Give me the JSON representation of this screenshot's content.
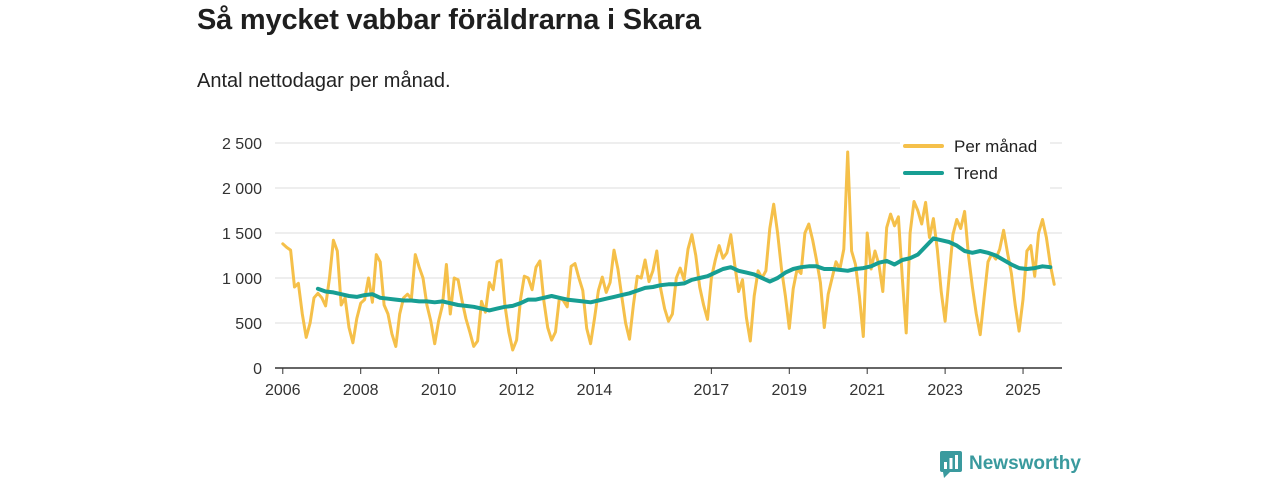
{
  "header": {
    "title": "Så mycket vabbar föräldrarna i Skara",
    "subtitle": "Antal nettodagar per månad."
  },
  "brand": {
    "name": "Newsworthy",
    "color": "#3a9a9e"
  },
  "colors": {
    "per_month": "#f5c04a",
    "trend": "#179e93",
    "grid": "#dcdcdc",
    "axis": "#333333"
  },
  "chart_data": {
    "type": "line",
    "title": "Så mycket vabbar föräldrarna i Skara",
    "subtitle": "Antal nettodagar per månad.",
    "xlabel": "",
    "ylabel": "",
    "xlim": [
      2005.8,
      2026.0
    ],
    "ylim": [
      0,
      2500
    ],
    "y_ticks": [
      0,
      500,
      1000,
      1500,
      2000,
      2500
    ],
    "y_tick_labels": [
      "0",
      "500",
      "1 000",
      "1 500",
      "2 000",
      "2 500"
    ],
    "x_ticks": [
      2006,
      2008,
      2010,
      2012,
      2014,
      2017,
      2019,
      2021,
      2023,
      2025
    ],
    "x_tick_labels": [
      "2006",
      "2008",
      "2010",
      "2012",
      "2014",
      "2017",
      "2019",
      "2021",
      "2023",
      "2025"
    ],
    "grid": true,
    "legend_position": "top-right",
    "series": [
      {
        "name": "Per månad",
        "color": "#f5c04a",
        "points": [
          [
            2006.0,
            1380
          ],
          [
            2006.1,
            1340
          ],
          [
            2006.2,
            1310
          ],
          [
            2006.3,
            900
          ],
          [
            2006.4,
            940
          ],
          [
            2006.5,
            600
          ],
          [
            2006.6,
            340
          ],
          [
            2006.7,
            500
          ],
          [
            2006.8,
            780
          ],
          [
            2006.9,
            830
          ],
          [
            2007.0,
            780
          ],
          [
            2007.1,
            690
          ],
          [
            2007.2,
            1000
          ],
          [
            2007.3,
            1420
          ],
          [
            2007.4,
            1300
          ],
          [
            2007.5,
            700
          ],
          [
            2007.6,
            780
          ],
          [
            2007.7,
            450
          ],
          [
            2007.8,
            280
          ],
          [
            2007.9,
            550
          ],
          [
            2008.0,
            720
          ],
          [
            2008.1,
            760
          ],
          [
            2008.2,
            1000
          ],
          [
            2008.3,
            730
          ],
          [
            2008.4,
            1260
          ],
          [
            2008.5,
            1180
          ],
          [
            2008.6,
            700
          ],
          [
            2008.7,
            600
          ],
          [
            2008.8,
            380
          ],
          [
            2008.9,
            240
          ],
          [
            2009.0,
            600
          ],
          [
            2009.1,
            780
          ],
          [
            2009.2,
            820
          ],
          [
            2009.3,
            770
          ],
          [
            2009.4,
            1260
          ],
          [
            2009.5,
            1120
          ],
          [
            2009.6,
            1000
          ],
          [
            2009.7,
            700
          ],
          [
            2009.8,
            520
          ],
          [
            2009.9,
            270
          ],
          [
            2010.0,
            520
          ],
          [
            2010.1,
            700
          ],
          [
            2010.2,
            1150
          ],
          [
            2010.3,
            600
          ],
          [
            2010.4,
            1000
          ],
          [
            2010.5,
            980
          ],
          [
            2010.6,
            750
          ],
          [
            2010.7,
            550
          ],
          [
            2010.8,
            400
          ],
          [
            2010.9,
            240
          ],
          [
            2011.0,
            300
          ],
          [
            2011.1,
            740
          ],
          [
            2011.2,
            620
          ],
          [
            2011.3,
            950
          ],
          [
            2011.4,
            870
          ],
          [
            2011.5,
            1180
          ],
          [
            2011.6,
            1200
          ],
          [
            2011.7,
            700
          ],
          [
            2011.8,
            400
          ],
          [
            2011.9,
            200
          ],
          [
            2012.0,
            310
          ],
          [
            2012.1,
            760
          ],
          [
            2012.2,
            1020
          ],
          [
            2012.3,
            1000
          ],
          [
            2012.4,
            870
          ],
          [
            2012.5,
            1120
          ],
          [
            2012.6,
            1190
          ],
          [
            2012.7,
            750
          ],
          [
            2012.8,
            450
          ],
          [
            2012.9,
            310
          ],
          [
            2013.0,
            400
          ],
          [
            2013.1,
            780
          ],
          [
            2013.2,
            750
          ],
          [
            2013.3,
            680
          ],
          [
            2013.4,
            1130
          ],
          [
            2013.5,
            1160
          ],
          [
            2013.6,
            1000
          ],
          [
            2013.7,
            860
          ],
          [
            2013.8,
            440
          ],
          [
            2013.9,
            270
          ],
          [
            2014.0,
            550
          ],
          [
            2014.1,
            860
          ],
          [
            2014.2,
            1010
          ],
          [
            2014.3,
            840
          ],
          [
            2014.4,
            950
          ],
          [
            2014.5,
            1310
          ],
          [
            2014.6,
            1100
          ],
          [
            2014.7,
            800
          ],
          [
            2014.8,
            500
          ],
          [
            2014.9,
            320
          ],
          [
            2015.0,
            700
          ],
          [
            2015.1,
            1020
          ],
          [
            2015.2,
            1000
          ],
          [
            2015.3,
            1200
          ],
          [
            2015.4,
            960
          ],
          [
            2015.5,
            1080
          ],
          [
            2015.6,
            1300
          ],
          [
            2015.7,
            880
          ],
          [
            2015.8,
            660
          ],
          [
            2015.9,
            520
          ],
          [
            2016.0,
            600
          ],
          [
            2016.1,
            1000
          ],
          [
            2016.2,
            1110
          ],
          [
            2016.3,
            980
          ],
          [
            2016.4,
            1320
          ],
          [
            2016.5,
            1480
          ],
          [
            2016.6,
            1250
          ],
          [
            2016.7,
            900
          ],
          [
            2016.8,
            700
          ],
          [
            2016.9,
            540
          ],
          [
            2017.0,
            1000
          ],
          [
            2017.1,
            1200
          ],
          [
            2017.2,
            1360
          ],
          [
            2017.3,
            1220
          ],
          [
            2017.4,
            1280
          ],
          [
            2017.5,
            1480
          ],
          [
            2017.6,
            1150
          ],
          [
            2017.7,
            850
          ],
          [
            2017.8,
            980
          ],
          [
            2017.9,
            560
          ],
          [
            2018.0,
            300
          ],
          [
            2018.1,
            800
          ],
          [
            2018.2,
            1080
          ],
          [
            2018.3,
            1000
          ],
          [
            2018.4,
            1080
          ],
          [
            2018.5,
            1550
          ],
          [
            2018.6,
            1820
          ],
          [
            2018.7,
            1500
          ],
          [
            2018.8,
            1100
          ],
          [
            2018.9,
            800
          ],
          [
            2019.0,
            440
          ],
          [
            2019.1,
            880
          ],
          [
            2019.2,
            1100
          ],
          [
            2019.3,
            1050
          ],
          [
            2019.4,
            1500
          ],
          [
            2019.5,
            1600
          ],
          [
            2019.6,
            1420
          ],
          [
            2019.7,
            1200
          ],
          [
            2019.8,
            950
          ],
          [
            2019.9,
            450
          ],
          [
            2020.0,
            820
          ],
          [
            2020.1,
            1000
          ],
          [
            2020.2,
            1180
          ],
          [
            2020.3,
            1100
          ],
          [
            2020.4,
            1320
          ],
          [
            2020.5,
            2400
          ],
          [
            2020.6,
            1300
          ],
          [
            2020.7,
            1150
          ],
          [
            2020.8,
            800
          ],
          [
            2020.9,
            350
          ],
          [
            2021.0,
            1500
          ],
          [
            2021.1,
            1100
          ],
          [
            2021.2,
            1300
          ],
          [
            2021.3,
            1150
          ],
          [
            2021.4,
            850
          ],
          [
            2021.5,
            1560
          ],
          [
            2021.6,
            1710
          ],
          [
            2021.7,
            1580
          ],
          [
            2021.8,
            1680
          ],
          [
            2021.9,
            1000
          ],
          [
            2022.0,
            390
          ],
          [
            2022.1,
            1500
          ],
          [
            2022.2,
            1850
          ],
          [
            2022.3,
            1750
          ],
          [
            2022.4,
            1600
          ],
          [
            2022.5,
            1840
          ],
          [
            2022.6,
            1450
          ],
          [
            2022.7,
            1660
          ],
          [
            2022.8,
            1320
          ],
          [
            2022.9,
            850
          ],
          [
            2023.0,
            520
          ],
          [
            2023.1,
            1000
          ],
          [
            2023.2,
            1480
          ],
          [
            2023.3,
            1650
          ],
          [
            2023.4,
            1550
          ],
          [
            2023.5,
            1740
          ],
          [
            2023.6,
            1250
          ],
          [
            2023.7,
            900
          ],
          [
            2023.8,
            600
          ],
          [
            2023.9,
            370
          ],
          [
            2024.0,
            780
          ],
          [
            2024.1,
            1180
          ],
          [
            2024.2,
            1270
          ],
          [
            2024.3,
            1210
          ],
          [
            2024.4,
            1320
          ],
          [
            2024.5,
            1530
          ],
          [
            2024.6,
            1280
          ],
          [
            2024.7,
            1050
          ],
          [
            2024.8,
            700
          ],
          [
            2024.9,
            410
          ],
          [
            2025.0,
            760
          ],
          [
            2025.1,
            1300
          ],
          [
            2025.2,
            1360
          ],
          [
            2025.3,
            1020
          ],
          [
            2025.4,
            1500
          ],
          [
            2025.5,
            1650
          ],
          [
            2025.6,
            1450
          ],
          [
            2025.7,
            1150
          ],
          [
            2025.8,
            930
          ]
        ]
      },
      {
        "name": "Trend",
        "color": "#179e93",
        "points": [
          [
            2006.9,
            880
          ],
          [
            2007.1,
            850
          ],
          [
            2007.3,
            840
          ],
          [
            2007.5,
            820
          ],
          [
            2007.7,
            800
          ],
          [
            2007.9,
            790
          ],
          [
            2008.1,
            810
          ],
          [
            2008.3,
            820
          ],
          [
            2008.5,
            780
          ],
          [
            2008.7,
            770
          ],
          [
            2008.9,
            760
          ],
          [
            2009.1,
            750
          ],
          [
            2009.3,
            750
          ],
          [
            2009.5,
            740
          ],
          [
            2009.7,
            740
          ],
          [
            2009.9,
            730
          ],
          [
            2010.1,
            740
          ],
          [
            2010.3,
            720
          ],
          [
            2010.5,
            700
          ],
          [
            2010.7,
            690
          ],
          [
            2010.9,
            680
          ],
          [
            2011.1,
            660
          ],
          [
            2011.3,
            640
          ],
          [
            2011.5,
            660
          ],
          [
            2011.7,
            680
          ],
          [
            2011.9,
            690
          ],
          [
            2012.1,
            720
          ],
          [
            2012.3,
            760
          ],
          [
            2012.5,
            760
          ],
          [
            2012.7,
            780
          ],
          [
            2012.9,
            800
          ],
          [
            2013.1,
            780
          ],
          [
            2013.3,
            760
          ],
          [
            2013.5,
            750
          ],
          [
            2013.7,
            740
          ],
          [
            2013.9,
            730
          ],
          [
            2014.1,
            750
          ],
          [
            2014.3,
            770
          ],
          [
            2014.5,
            790
          ],
          [
            2014.7,
            810
          ],
          [
            2014.9,
            830
          ],
          [
            2015.1,
            860
          ],
          [
            2015.3,
            890
          ],
          [
            2015.5,
            900
          ],
          [
            2015.7,
            920
          ],
          [
            2015.9,
            930
          ],
          [
            2016.1,
            930
          ],
          [
            2016.3,
            940
          ],
          [
            2016.5,
            980
          ],
          [
            2016.7,
            1000
          ],
          [
            2016.9,
            1020
          ],
          [
            2017.1,
            1060
          ],
          [
            2017.3,
            1100
          ],
          [
            2017.5,
            1120
          ],
          [
            2017.7,
            1080
          ],
          [
            2017.9,
            1060
          ],
          [
            2018.1,
            1040
          ],
          [
            2018.3,
            1000
          ],
          [
            2018.5,
            960
          ],
          [
            2018.7,
            1000
          ],
          [
            2018.9,
            1060
          ],
          [
            2019.1,
            1100
          ],
          [
            2019.3,
            1120
          ],
          [
            2019.5,
            1130
          ],
          [
            2019.7,
            1130
          ],
          [
            2019.9,
            1100
          ],
          [
            2020.1,
            1100
          ],
          [
            2020.3,
            1090
          ],
          [
            2020.5,
            1080
          ],
          [
            2020.7,
            1100
          ],
          [
            2020.9,
            1110
          ],
          [
            2021.1,
            1130
          ],
          [
            2021.3,
            1170
          ],
          [
            2021.5,
            1190
          ],
          [
            2021.7,
            1150
          ],
          [
            2021.9,
            1200
          ],
          [
            2022.1,
            1220
          ],
          [
            2022.3,
            1260
          ],
          [
            2022.5,
            1350
          ],
          [
            2022.7,
            1440
          ],
          [
            2022.9,
            1420
          ],
          [
            2023.1,
            1400
          ],
          [
            2023.3,
            1360
          ],
          [
            2023.5,
            1300
          ],
          [
            2023.7,
            1280
          ],
          [
            2023.9,
            1300
          ],
          [
            2024.1,
            1280
          ],
          [
            2024.3,
            1250
          ],
          [
            2024.5,
            1200
          ],
          [
            2024.7,
            1150
          ],
          [
            2024.9,
            1110
          ],
          [
            2025.1,
            1100
          ],
          [
            2025.3,
            1110
          ],
          [
            2025.5,
            1130
          ],
          [
            2025.7,
            1120
          ]
        ]
      }
    ]
  }
}
